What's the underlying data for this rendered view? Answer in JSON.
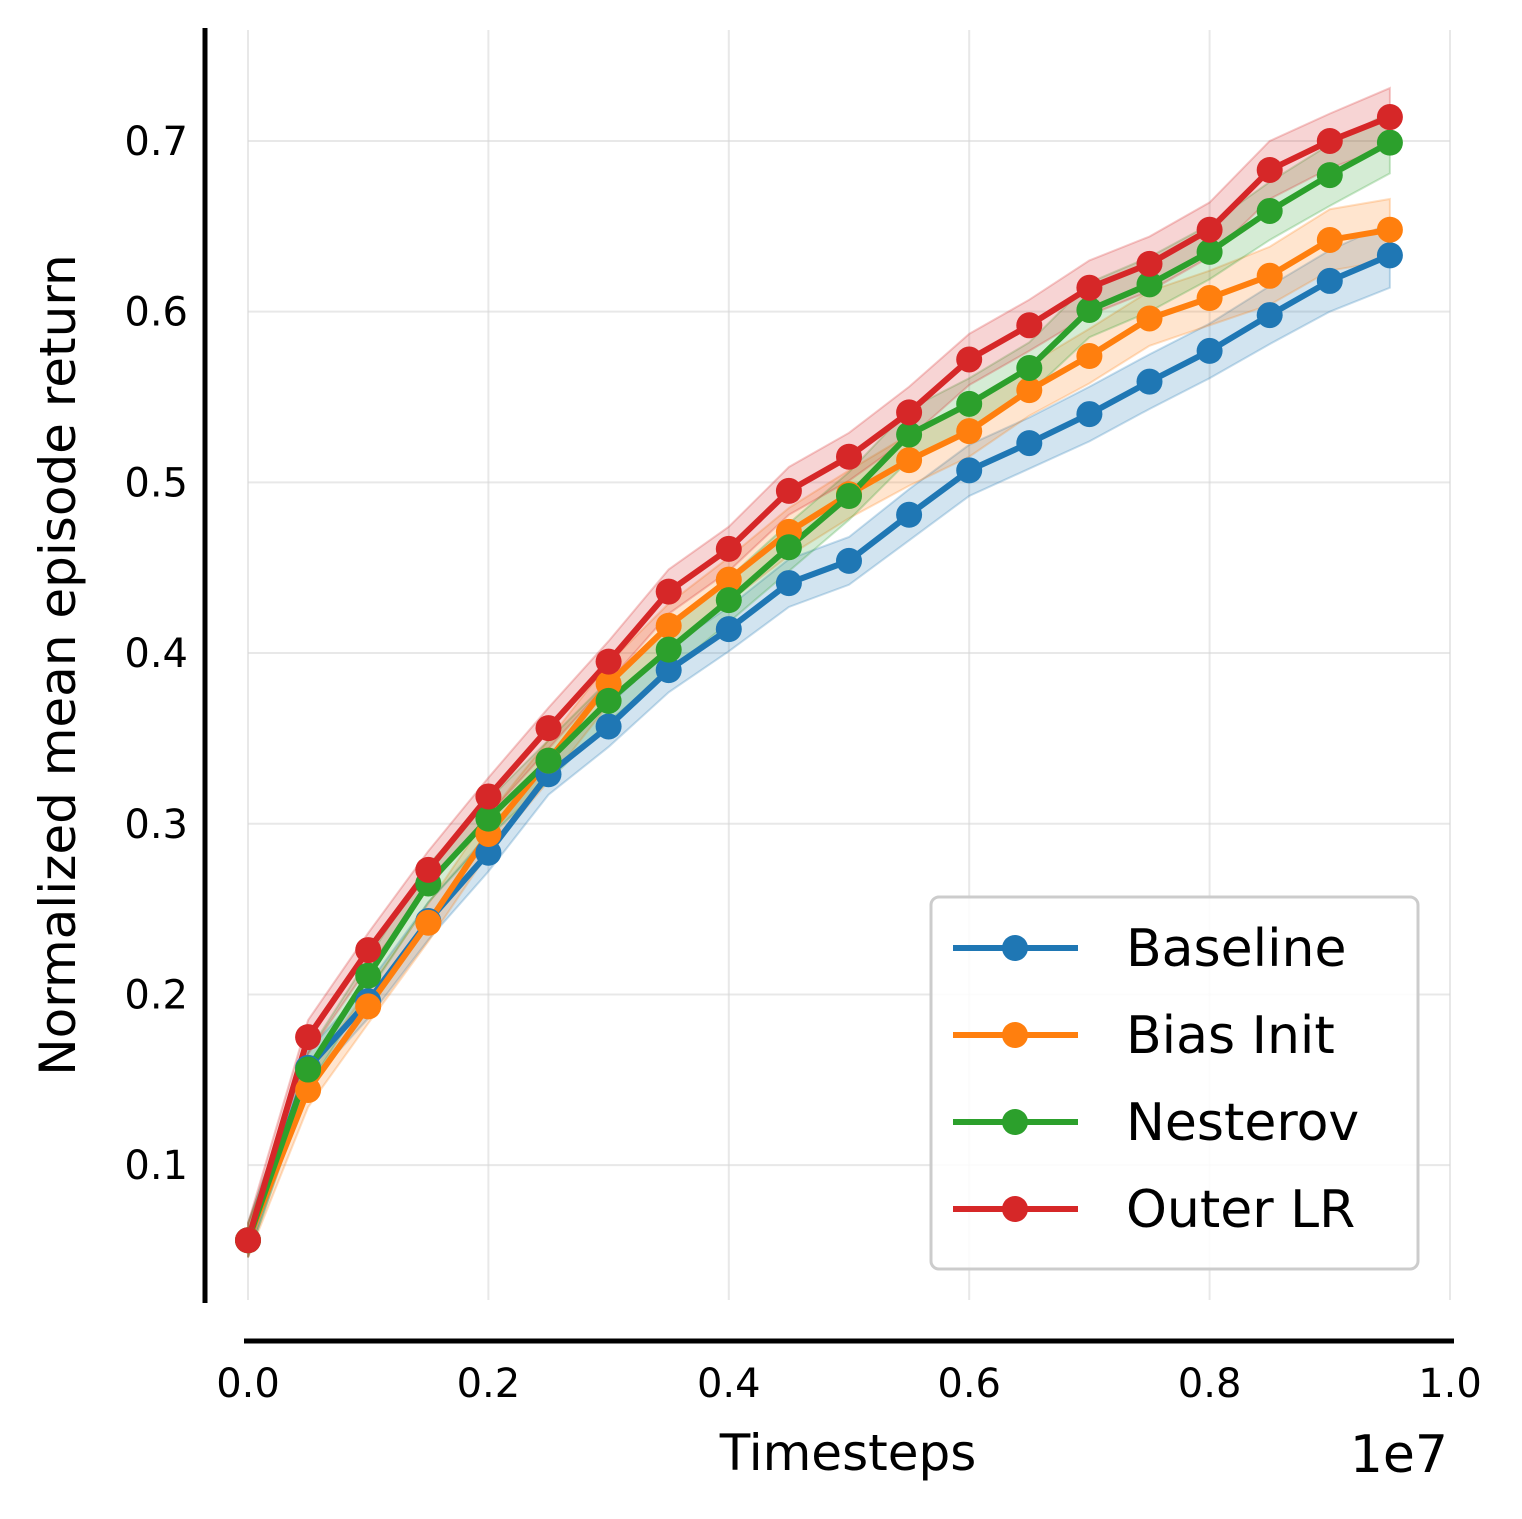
{
  "chart_data": {
    "type": "line",
    "title": "",
    "xlabel": "Timesteps",
    "ylabel": "Normalized mean episode return",
    "x_offset_label": "1e7",
    "xlim": [
      0.0,
      1.0
    ],
    "ylim": [
      0.021,
      0.765
    ],
    "xticks": [
      0.0,
      0.2,
      0.4,
      0.6,
      0.8,
      1.0
    ],
    "xtick_labels": [
      "0.0",
      "0.2",
      "0.4",
      "0.6",
      "0.8",
      "1.0"
    ],
    "yticks": [
      0.1,
      0.2,
      0.3,
      0.4,
      0.5,
      0.6,
      0.7
    ],
    "ytick_labels": [
      "0.1",
      "0.2",
      "0.3",
      "0.4",
      "0.5",
      "0.6",
      "0.7"
    ],
    "grid": true,
    "legend_position": "lower-right",
    "x": [
      0.0,
      0.05,
      0.1,
      0.15,
      0.2,
      0.25,
      0.3,
      0.35,
      0.4,
      0.45,
      0.5,
      0.55,
      0.6,
      0.65,
      0.7,
      0.75,
      0.8,
      0.85,
      0.9,
      0.95
    ],
    "series": [
      {
        "name": "Baseline",
        "color": "#1f77b4",
        "values": [
          0.056,
          0.157,
          0.196,
          0.243,
          0.283,
          0.329,
          0.357,
          0.39,
          0.414,
          0.441,
          0.454,
          0.481,
          0.507,
          0.523,
          0.54,
          0.559,
          0.577,
          0.598,
          0.618,
          0.633
        ],
        "band": [
          0.01,
          0.01,
          0.01,
          0.011,
          0.011,
          0.012,
          0.012,
          0.013,
          0.013,
          0.014,
          0.014,
          0.015,
          0.015,
          0.015,
          0.016,
          0.016,
          0.016,
          0.017,
          0.018,
          0.019
        ]
      },
      {
        "name": "Bias Init",
        "color": "#ff7f0e",
        "values": [
          0.056,
          0.144,
          0.193,
          0.242,
          0.294,
          0.337,
          0.382,
          0.416,
          0.443,
          0.471,
          0.493,
          0.513,
          0.53,
          0.554,
          0.574,
          0.596,
          0.608,
          0.621,
          0.642,
          0.648
        ],
        "band": [
          0.01,
          0.01,
          0.01,
          0.011,
          0.011,
          0.012,
          0.012,
          0.013,
          0.013,
          0.014,
          0.014,
          0.015,
          0.015,
          0.015,
          0.016,
          0.016,
          0.016,
          0.017,
          0.018,
          0.018
        ]
      },
      {
        "name": "Nesterov",
        "color": "#2ca02c",
        "values": [
          0.056,
          0.156,
          0.211,
          0.265,
          0.303,
          0.337,
          0.372,
          0.402,
          0.431,
          0.462,
          0.492,
          0.528,
          0.546,
          0.567,
          0.601,
          0.616,
          0.635,
          0.659,
          0.68,
          0.699
        ],
        "band": [
          0.01,
          0.01,
          0.01,
          0.011,
          0.011,
          0.012,
          0.012,
          0.013,
          0.013,
          0.014,
          0.014,
          0.015,
          0.015,
          0.015,
          0.016,
          0.016,
          0.016,
          0.017,
          0.018,
          0.018
        ]
      },
      {
        "name": "Outer LR",
        "color": "#d62728",
        "values": [
          0.056,
          0.175,
          0.226,
          0.273,
          0.316,
          0.356,
          0.395,
          0.436,
          0.461,
          0.495,
          0.515,
          0.541,
          0.572,
          0.592,
          0.614,
          0.628,
          0.648,
          0.683,
          0.7,
          0.714
        ],
        "band": [
          0.01,
          0.01,
          0.01,
          0.011,
          0.011,
          0.012,
          0.012,
          0.013,
          0.013,
          0.014,
          0.014,
          0.015,
          0.015,
          0.015,
          0.016,
          0.016,
          0.016,
          0.017,
          0.016,
          0.017
        ]
      }
    ]
  }
}
